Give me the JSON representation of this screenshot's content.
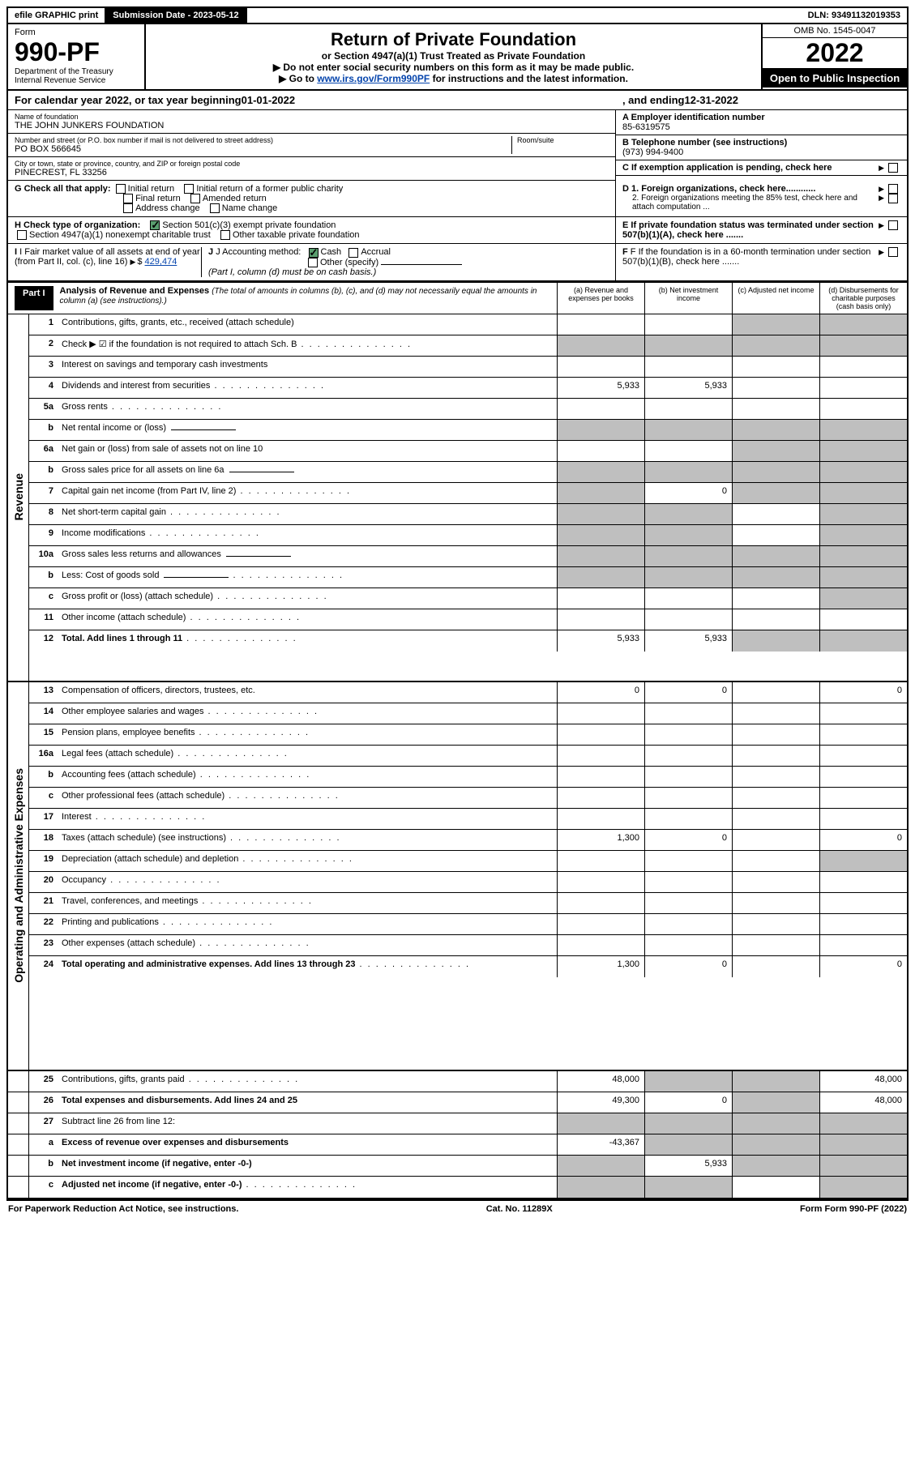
{
  "topbar": {
    "efile": "efile GRAPHIC print",
    "subdate_lbl": "Submission Date - ",
    "subdate": "2023-05-12",
    "dln_lbl": "DLN: ",
    "dln": "93491132019353"
  },
  "header": {
    "form_word": "Form",
    "form_num": "990-PF",
    "dept": "Department of the Treasury",
    "irs": "Internal Revenue Service",
    "title": "Return of Private Foundation",
    "subtitle": "or Section 4947(a)(1) Trust Treated as Private Foundation",
    "note1": "▶ Do not enter social security numbers on this form as it may be made public.",
    "note2_pre": "▶ Go to ",
    "note2_link": "www.irs.gov/Form990PF",
    "note2_post": " for instructions and the latest information.",
    "omb": "OMB No. 1545-0047",
    "year": "2022",
    "open": "Open to Public Inspection"
  },
  "calyear": {
    "pre": "For calendar year 2022, or tax year beginning ",
    "begin": "01-01-2022",
    "mid": ", and ending ",
    "end": "12-31-2022"
  },
  "info": {
    "name_lbl": "Name of foundation",
    "name": "THE JOHN JUNKERS FOUNDATION",
    "addr_lbl": "Number and street (or P.O. box number if mail is not delivered to street address)",
    "addr": "PO BOX 566645",
    "room_lbl": "Room/suite",
    "city_lbl": "City or town, state or province, country, and ZIP or foreign postal code",
    "city": "PINECREST, FL  33256",
    "a_lbl": "A Employer identification number",
    "a_val": "85-6319575",
    "b_lbl": "B Telephone number (see instructions)",
    "b_val": "(973) 994-9400",
    "c_lbl": "C If exemption application is pending, check here",
    "g_lbl": "G Check all that apply:",
    "g_opts": [
      "Initial return",
      "Initial return of a former public charity",
      "Final return",
      "Amended return",
      "Address change",
      "Name change"
    ],
    "d1": "D 1. Foreign organizations, check here............",
    "d2": "2. Foreign organizations meeting the 85% test, check here and attach computation ...",
    "h_lbl": "H Check type of organization:",
    "h1": "Section 501(c)(3) exempt private foundation",
    "h2": "Section 4947(a)(1) nonexempt charitable trust",
    "h3": "Other taxable private foundation",
    "e_lbl": "E If private foundation status was terminated under section 507(b)(1)(A), check here .......",
    "i_lbl": "I Fair market value of all assets at end of year (from Part II, col. (c), line 16)",
    "i_val": "429,474",
    "j_lbl": "J Accounting method:",
    "j_cash": "Cash",
    "j_accr": "Accrual",
    "j_other": "Other (specify)",
    "j_note": "(Part I, column (d) must be on cash basis.)",
    "f_lbl": "F If the foundation is in a 60-month termination under section 507(b)(1)(B), check here ......."
  },
  "part1": {
    "label": "Part I",
    "title": "Analysis of Revenue and Expenses ",
    "title_note": "(The total of amounts in columns (b), (c), and (d) may not necessarily equal the amounts in column (a) (see instructions).)",
    "cols": {
      "a": "(a)  Revenue and expenses per books",
      "b": "(b)  Net investment income",
      "c": "(c)  Adjusted net income",
      "d": "(d)  Disbursements for charitable purposes (cash basis only)"
    }
  },
  "sections": {
    "revenue": "Revenue",
    "opex": "Operating and Administrative Expenses"
  },
  "lines": [
    {
      "n": "1",
      "d": "Contributions, gifts, grants, etc., received (attach schedule)",
      "g": [
        0,
        0,
        1,
        1
      ]
    },
    {
      "n": "2",
      "d": "Check ▶ ☑ if the foundation is not required to attach Sch. B",
      "dots": 1,
      "g": [
        1,
        1,
        1,
        1
      ]
    },
    {
      "n": "3",
      "d": "Interest on savings and temporary cash investments"
    },
    {
      "n": "4",
      "d": "Dividends and interest from securities",
      "dots": 1,
      "a": "5,933",
      "b": "5,933"
    },
    {
      "n": "5a",
      "d": "Gross rents",
      "dots": 1
    },
    {
      "n": "b",
      "d": "Net rental income or (loss)",
      "g": [
        1,
        1,
        1,
        1
      ],
      "blank": 1
    },
    {
      "n": "6a",
      "d": "Net gain or (loss) from sale of assets not on line 10",
      "g": [
        0,
        0,
        1,
        1
      ]
    },
    {
      "n": "b",
      "d": "Gross sales price for all assets on line 6a",
      "g": [
        1,
        1,
        1,
        1
      ],
      "blank": 1
    },
    {
      "n": "7",
      "d": "Capital gain net income (from Part IV, line 2)",
      "dots": 1,
      "g": [
        1,
        0,
        1,
        1
      ],
      "b": "0"
    },
    {
      "n": "8",
      "d": "Net short-term capital gain",
      "dots": 1,
      "g": [
        1,
        1,
        0,
        1
      ]
    },
    {
      "n": "9",
      "d": "Income modifications",
      "dots": 1,
      "g": [
        1,
        1,
        0,
        1
      ]
    },
    {
      "n": "10a",
      "d": "Gross sales less returns and allowances",
      "g": [
        1,
        1,
        1,
        1
      ],
      "blank": 1
    },
    {
      "n": "b",
      "d": "Less: Cost of goods sold",
      "dots": 1,
      "g": [
        1,
        1,
        1,
        1
      ],
      "blank": 1
    },
    {
      "n": "c",
      "d": "Gross profit or (loss) (attach schedule)",
      "dots": 1,
      "g": [
        0,
        0,
        0,
        1
      ]
    },
    {
      "n": "11",
      "d": "Other income (attach schedule)",
      "dots": 1
    },
    {
      "n": "12",
      "d": "Total. Add lines 1 through 11",
      "dots": 1,
      "bold": 1,
      "a": "5,933",
      "b": "5,933",
      "g": [
        0,
        0,
        1,
        1
      ]
    },
    {
      "n": "13",
      "d": "Compensation of officers, directors, trustees, etc.",
      "a": "0",
      "b": "0",
      "dd": "0"
    },
    {
      "n": "14",
      "d": "Other employee salaries and wages",
      "dots": 1
    },
    {
      "n": "15",
      "d": "Pension plans, employee benefits",
      "dots": 1
    },
    {
      "n": "16a",
      "d": "Legal fees (attach schedule)",
      "dots": 1
    },
    {
      "n": "b",
      "d": "Accounting fees (attach schedule)",
      "dots": 1
    },
    {
      "n": "c",
      "d": "Other professional fees (attach schedule)",
      "dots": 1
    },
    {
      "n": "17",
      "d": "Interest",
      "dots": 1
    },
    {
      "n": "18",
      "d": "Taxes (attach schedule) (see instructions)",
      "dots": 1,
      "a": "1,300",
      "b": "0",
      "dd": "0"
    },
    {
      "n": "19",
      "d": "Depreciation (attach schedule) and depletion",
      "dots": 1,
      "g": [
        0,
        0,
        0,
        1
      ]
    },
    {
      "n": "20",
      "d": "Occupancy",
      "dots": 1
    },
    {
      "n": "21",
      "d": "Travel, conferences, and meetings",
      "dots": 1
    },
    {
      "n": "22",
      "d": "Printing and publications",
      "dots": 1
    },
    {
      "n": "23",
      "d": "Other expenses (attach schedule)",
      "dots": 1
    },
    {
      "n": "24",
      "d": "Total operating and administrative expenses. Add lines 13 through 23",
      "dots": 1,
      "bold": 1,
      "a": "1,300",
      "b": "0",
      "dd": "0"
    },
    {
      "n": "25",
      "d": "Contributions, gifts, grants paid",
      "dots": 1,
      "a": "48,000",
      "g": [
        0,
        1,
        1,
        0
      ],
      "dd": "48,000"
    },
    {
      "n": "26",
      "d": "Total expenses and disbursements. Add lines 24 and 25",
      "bold": 1,
      "a": "49,300",
      "b": "0",
      "g": [
        0,
        0,
        1,
        0
      ],
      "dd": "48,000"
    },
    {
      "n": "27",
      "d": "Subtract line 26 from line 12:",
      "g": [
        1,
        1,
        1,
        1
      ]
    },
    {
      "n": "a",
      "d": "Excess of revenue over expenses and disbursements",
      "bold": 1,
      "a": "-43,367",
      "g": [
        0,
        1,
        1,
        1
      ]
    },
    {
      "n": "b",
      "d": "Net investment income (if negative, enter -0-)",
      "bold": 1,
      "b": "5,933",
      "g": [
        1,
        0,
        1,
        1
      ]
    },
    {
      "n": "c",
      "d": "Adjusted net income (if negative, enter -0-)",
      "dots": 1,
      "bold": 1,
      "g": [
        1,
        1,
        0,
        1
      ]
    }
  ],
  "footer": {
    "left": "For Paperwork Reduction Act Notice, see instructions.",
    "mid": "Cat. No. 11289X",
    "right": "Form 990-PF (2022)"
  }
}
